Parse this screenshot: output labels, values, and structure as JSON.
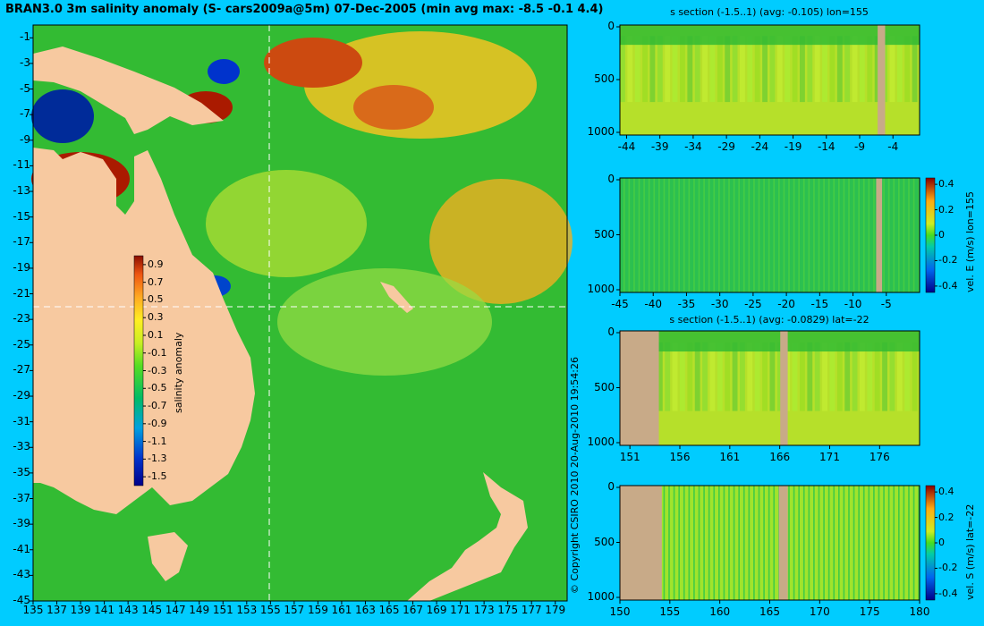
{
  "title": "BRAN3.0 3m salinity anomaly (S- cars2009a@5m) 07-Dec-2005 (min avg max: -8.5 -0.1 4.4)",
  "copyright": "© Copyright CSIRO 2010   20-Aug-2010 19:54:26",
  "colors": {
    "background": "#00ccff",
    "land": "#f7c9a0",
    "section_land": "#c8aa88"
  },
  "map": {
    "x_ticks": [
      "135",
      "137",
      "139",
      "141",
      "143",
      "145",
      "147",
      "149",
      "151",
      "153",
      "155",
      "157",
      "159",
      "161",
      "163",
      "165",
      "167",
      "169",
      "171",
      "173",
      "175",
      "177",
      "179"
    ],
    "y_ticks": [
      "-1",
      "-3",
      "-5",
      "-7",
      "-9",
      "-11",
      "-13",
      "-15",
      "-17",
      "-19",
      "-21",
      "-23",
      "-25",
      "-27",
      "-29",
      "-31",
      "-33",
      "-35",
      "-37",
      "-39",
      "-41",
      "-43",
      "-45"
    ],
    "colorbar_label": "salinity anomaly",
    "colorbar_ticks": [
      "0.9",
      "0.7",
      "0.5",
      "0.3",
      "0.1",
      "-0.1",
      "-0.3",
      "-0.5",
      "-0.7",
      "-0.9",
      "-1.1",
      "-1.3",
      "-1.5"
    ],
    "section_lon": 155,
    "section_lat": -22
  },
  "panels": [
    {
      "id": "p1",
      "title": "s section (-1.5..1) (avg: -0.105) lon=155",
      "y_ticks": [
        "0",
        "500",
        "1000"
      ],
      "x_ticks": [
        "-44",
        "-39",
        "-34",
        "-29",
        "-24",
        "-19",
        "-14",
        "-9",
        "-4"
      ],
      "colorbar": null
    },
    {
      "id": "p2",
      "title": "",
      "y_ticks": [
        "0",
        "500",
        "1000"
      ],
      "x_ticks": [
        "-45",
        "-40",
        "-35",
        "-30",
        "-25",
        "-20",
        "-15",
        "-10",
        "-5"
      ],
      "colorbar": {
        "label": "vel. E (m/s) lon=155",
        "ticks": [
          "0.4",
          "0.2",
          "0",
          "-0.2",
          "-0.4"
        ]
      }
    },
    {
      "id": "p3",
      "title": "s section (-1.5..1) (avg: -0.0829) lat=-22",
      "y_ticks": [
        "0",
        "500",
        "1000"
      ],
      "x_ticks": [
        "151",
        "156",
        "161",
        "166",
        "171",
        "176"
      ],
      "colorbar": null
    },
    {
      "id": "p4",
      "title": "",
      "y_ticks": [
        "0",
        "500",
        "1000"
      ],
      "x_ticks": [
        "150",
        "155",
        "160",
        "165",
        "170",
        "175",
        "180"
      ],
      "colorbar": {
        "label": "vel. S (m/s) lat=-22",
        "ticks": [
          "0.4",
          "0.2",
          "0",
          "-0.2",
          "-0.4"
        ]
      }
    }
  ],
  "chart_data": [
    {
      "type": "heatmap",
      "title": "BRAN3.0 3m salinity anomaly (S- cars2009a@5m) 07-Dec-2005 (min avg max: -8.5 -0.1 4.4)",
      "xlabel": "",
      "ylabel": "",
      "xlim": [
        135,
        180
      ],
      "ylim": [
        -45,
        0
      ],
      "color_range": [
        -1.5,
        1
      ],
      "colorbar_label": "salinity anomaly",
      "min": -8.5,
      "avg": -0.1,
      "max": 4.4
    },
    {
      "type": "heatmap",
      "title": "s section (-1.5..1) (avg: -0.105) lon=155",
      "avg": -0.105,
      "xlim": [
        -45,
        0
      ],
      "ylim": [
        1000,
        0
      ],
      "color_range": [
        -1.5,
        1
      ]
    },
    {
      "type": "heatmap",
      "title": "vel. E (m/s) lon=155",
      "xlim": [
        -45,
        0
      ],
      "ylim": [
        1000,
        0
      ],
      "color_range": [
        -0.4,
        0.4
      ]
    },
    {
      "type": "heatmap",
      "title": "s section (-1.5..1) (avg: -0.0829) lat=-22",
      "avg": -0.0829,
      "xlim": [
        150,
        180
      ],
      "ylim": [
        1000,
        0
      ],
      "color_range": [
        -1.5,
        1
      ]
    },
    {
      "type": "heatmap",
      "title": "vel. S (m/s) lat=-22",
      "xlim": [
        150,
        180
      ],
      "ylim": [
        1000,
        0
      ],
      "color_range": [
        -0.4,
        0.4
      ]
    }
  ]
}
